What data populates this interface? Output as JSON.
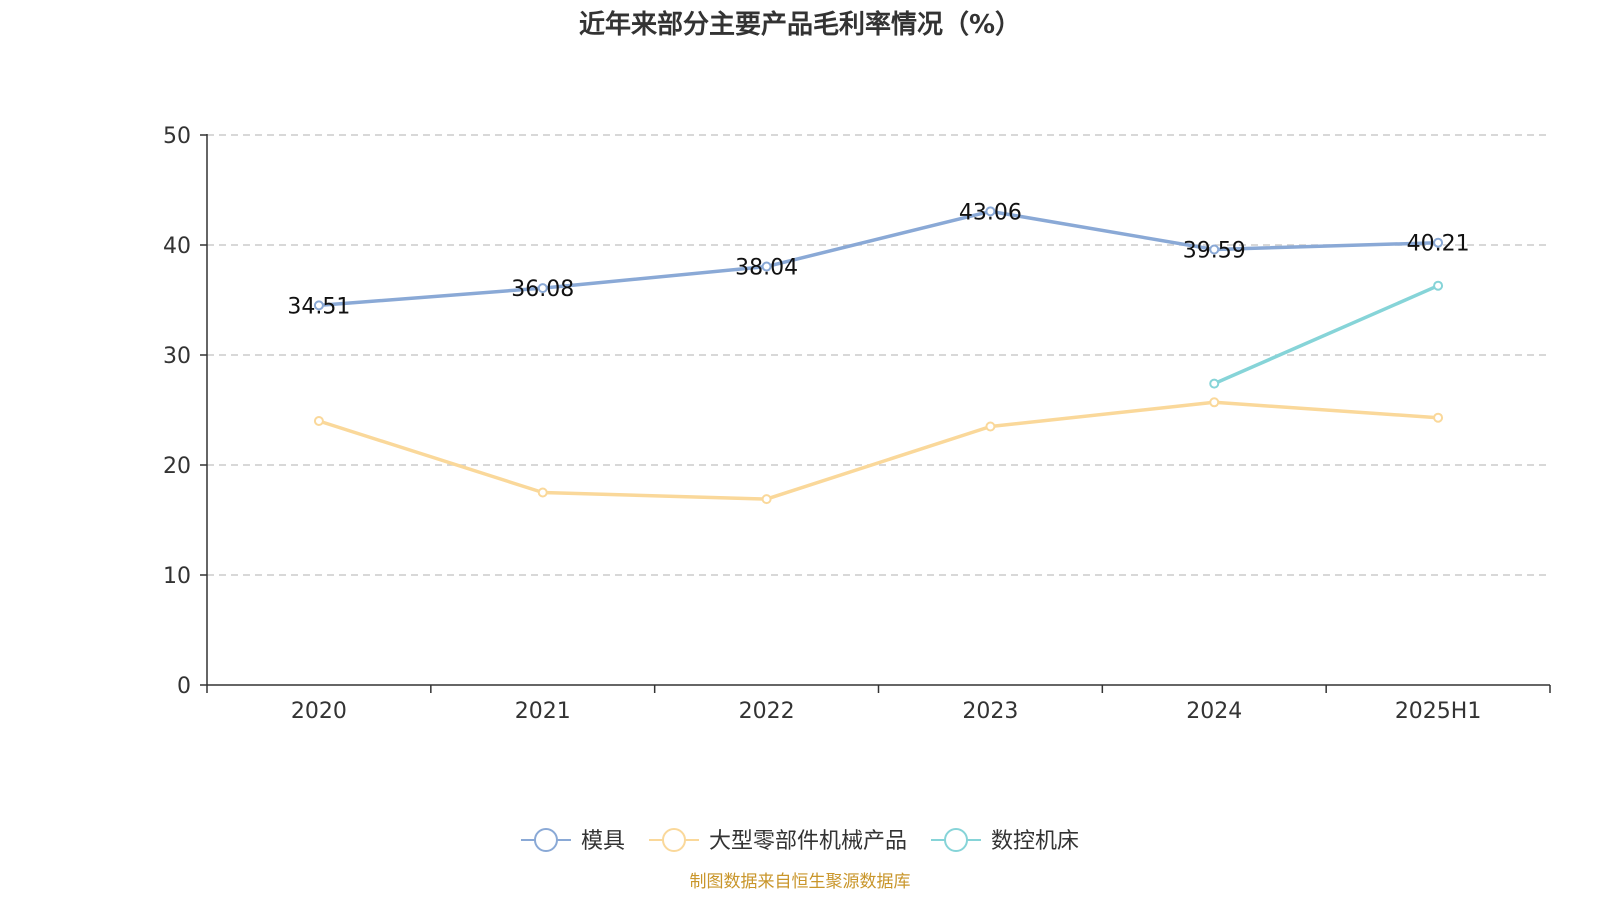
{
  "chart_data": {
    "type": "line",
    "title": "近年来部分主要产品毛利率情况（%）",
    "categories": [
      "2020",
      "2021",
      "2022",
      "2023",
      "2024",
      "2025H1"
    ],
    "ylim": [
      0,
      50
    ],
    "yticks": [
      0,
      10,
      20,
      30,
      40,
      50
    ],
    "grid": true,
    "legend_position": "bottom",
    "series": [
      {
        "name": "模具",
        "color": "#8aa9d6",
        "values": [
          34.51,
          36.08,
          38.04,
          43.06,
          39.59,
          40.21
        ],
        "show_labels": true
      },
      {
        "name": "大型零部件机械产品",
        "color": "#fad89a",
        "values": [
          24.0,
          17.5,
          16.9,
          23.5,
          25.7,
          24.3
        ],
        "show_labels": false
      },
      {
        "name": "数控机床",
        "color": "#86d4d8",
        "values": [
          null,
          null,
          null,
          null,
          27.4,
          36.3
        ],
        "show_labels": false
      }
    ]
  },
  "source": {
    "text": "制图数据来自恒生聚源数据库",
    "color": "#c9962b"
  }
}
